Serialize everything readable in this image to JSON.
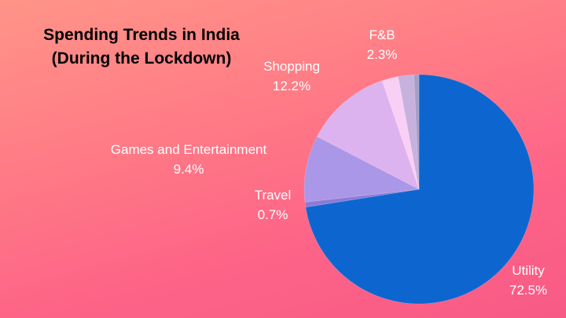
{
  "chart_data": {
    "type": "pie",
    "title": "Spending Trends in India",
    "subtitle": "(During the Lockdown)",
    "slices": [
      {
        "label": "Utility",
        "value": 72.5,
        "display": "72.5%",
        "color": "#0d66d0"
      },
      {
        "label": "Travel",
        "value": 0.7,
        "display": "0.7%",
        "color": "#8a7ad8"
      },
      {
        "label": "Games and Entertainment",
        "value": 9.4,
        "display": "9.4%",
        "color": "#ab97e8"
      },
      {
        "label": "Shopping",
        "value": 12.2,
        "display": "12.2%",
        "color": "#dcb3ef"
      },
      {
        "label": "F&B",
        "value": 2.3,
        "display": "2.3%",
        "color": "#f8d0f6"
      },
      {
        "label": "",
        "value": 2.2,
        "display": "",
        "color": "#c7b1dd"
      },
      {
        "label": "",
        "value": 0.7,
        "display": "",
        "color": "#a3a0c8"
      }
    ],
    "legend": "none",
    "data_labels": "outside"
  }
}
